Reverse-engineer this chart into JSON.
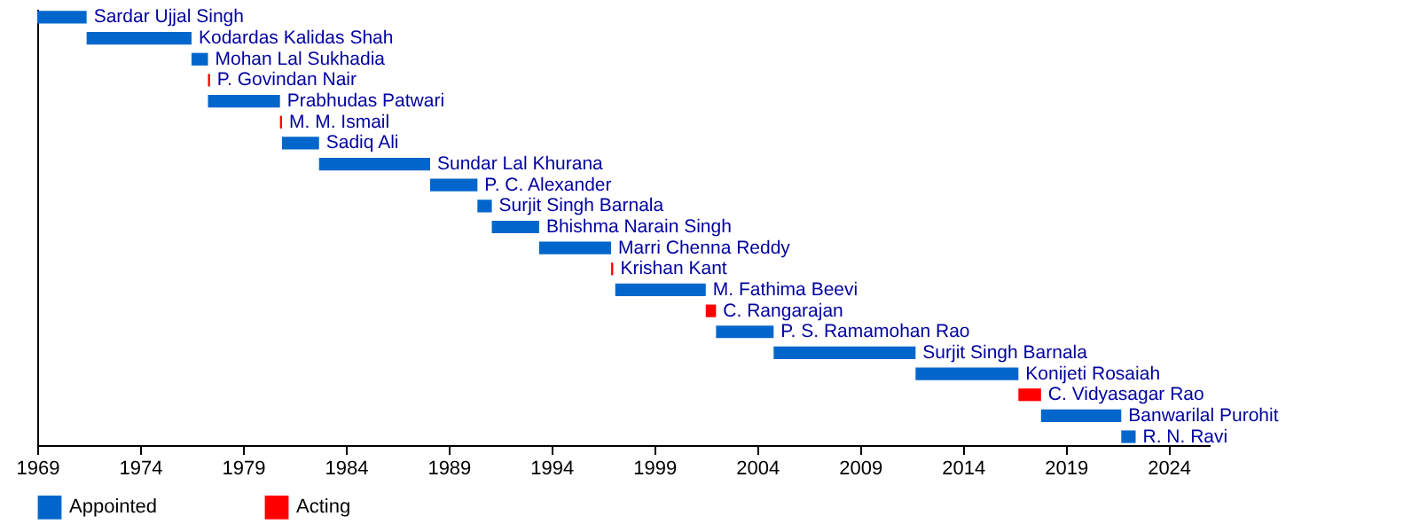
{
  "chart_data": {
    "type": "bar",
    "orientation": "horizontal",
    "legend": "bottom",
    "grid": false,
    "tick_labels": "x",
    "categories": [
      "Sardar Ujjal Singh",
      "Kodardas Kalidas Shah",
      "Mohan Lal Sukhadia",
      "P. Govindan Nair",
      "Prabhudas Patwari",
      "M. M. Ismail",
      "Sadiq Ali",
      "Sundar Lal Khurana",
      "P. C. Alexander",
      "Surjit Singh Barnala",
      "Bhishma Narain Singh",
      "Marri Chenna Reddy",
      "Krishan Kant",
      "M. Fathima Beevi",
      "C. Rangarajan",
      "P. S. Ramamohan Rao",
      "Surjit Singh Barnala",
      "Konijeti Rosaiah",
      "C. Vidyasagar Rao",
      "Banwarilal Purohit",
      "R. N. Ravi"
    ],
    "series": [
      {
        "name": "Appointed",
        "color": "#0066cc",
        "base": [
          1969,
          1971.4,
          1976.5,
          null,
          1977.3,
          null,
          1980.9,
          1982.7,
          1988.1,
          1990.4,
          1991.1,
          1993.4,
          null,
          1997.1,
          null,
          2002.0,
          2004.8,
          2011.7,
          null,
          2017.8,
          2021.7
        ],
        "values": [
          2.4,
          5.1,
          0.8,
          null,
          3.5,
          null,
          1.8,
          5.4,
          2.3,
          0.7,
          2.3,
          3.5,
          null,
          4.4,
          null,
          2.8,
          6.9,
          5.0,
          null,
          3.9,
          0.7
        ]
      },
      {
        "name": "Acting",
        "color": "#ff0000",
        "base": [
          null,
          null,
          null,
          1977.3,
          null,
          1980.8,
          null,
          null,
          null,
          null,
          null,
          null,
          1996.9,
          null,
          2001.5,
          null,
          null,
          null,
          2016.7,
          null,
          null
        ],
        "values": [
          null,
          null,
          null,
          0.1,
          null,
          0.1,
          null,
          null,
          null,
          null,
          null,
          null,
          0.1,
          null,
          0.5,
          null,
          null,
          null,
          1.1,
          null,
          null
        ]
      }
    ],
    "xlim": [
      1969,
      2026
    ],
    "xticks": [
      1969,
      1974,
      1979,
      1984,
      1989,
      1994,
      1999,
      2004,
      2009,
      2014,
      2019,
      2024
    ]
  }
}
